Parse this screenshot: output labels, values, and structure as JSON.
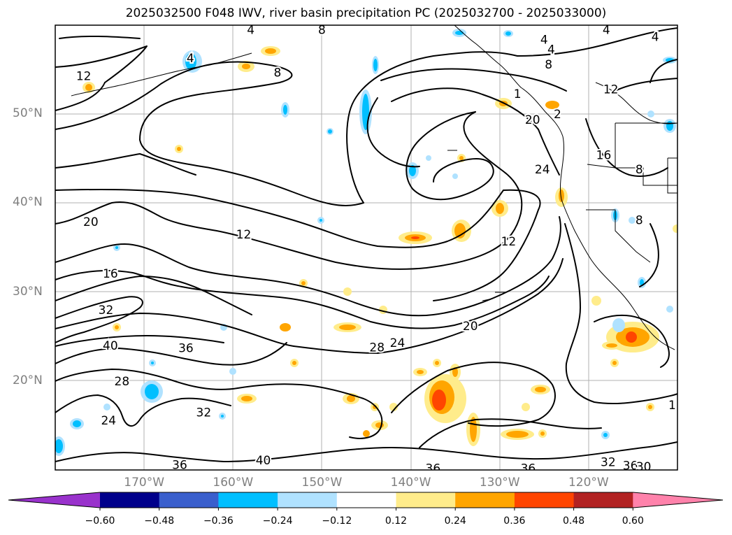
{
  "title": "2025032500 F048 IWV, river basin precipitation PC (2025032700 - 2025033000)",
  "map": {
    "lon_range": [
      -180,
      -110
    ],
    "lat_range": [
      10,
      60
    ],
    "lat_labels": [
      {
        "lat": 50,
        "text": "50°N"
      },
      {
        "lat": 40,
        "text": "40°N"
      },
      {
        "lat": 30,
        "text": "30°N"
      },
      {
        "lat": 20,
        "text": "20°N"
      }
    ],
    "lon_labels": [
      {
        "lon": -170,
        "text": "170°W"
      },
      {
        "lon": -160,
        "text": "160°W"
      },
      {
        "lon": -150,
        "text": "150°W"
      },
      {
        "lon": -140,
        "text": "140°W"
      },
      {
        "lon": -130,
        "text": "130°W"
      },
      {
        "lon": -120,
        "text": "120°W"
      }
    ],
    "contour_labels": [
      {
        "text": "12",
        "lon": -176.8,
        "lat": 54.3
      },
      {
        "text": "4",
        "lon": -164.8,
        "lat": 56.3
      },
      {
        "text": "8",
        "lon": -155.0,
        "lat": 54.7
      },
      {
        "text": "4",
        "lon": -158.0,
        "lat": 59.5
      },
      {
        "text": "8",
        "lon": -150.0,
        "lat": 59.5
      },
      {
        "text": "4",
        "lon": -125.0,
        "lat": 58.4
      },
      {
        "text": "4",
        "lon": -124.2,
        "lat": 57.3
      },
      {
        "text": "8",
        "lon": -124.5,
        "lat": 55.6
      },
      {
        "text": "4",
        "lon": -118.0,
        "lat": 59.5
      },
      {
        "text": "4",
        "lon": -112.5,
        "lat": 58.7
      },
      {
        "text": "12",
        "lon": -117.5,
        "lat": 52.8
      },
      {
        "text": "16",
        "lon": -118.3,
        "lat": 45.4
      },
      {
        "text": "8",
        "lon": -114.3,
        "lat": 43.8
      },
      {
        "text": "8",
        "lon": -114.3,
        "lat": 38.1
      },
      {
        "text": "20",
        "lon": -126.3,
        "lat": 49.4
      },
      {
        "text": "24",
        "lon": -125.2,
        "lat": 43.8
      },
      {
        "text": "2",
        "lon": -123.5,
        "lat": 50.0
      },
      {
        "text": "1",
        "lon": -128.0,
        "lat": 52.3
      },
      {
        "text": "12",
        "lon": -158.8,
        "lat": 36.5
      },
      {
        "text": "12",
        "lon": -129.0,
        "lat": 35.7
      },
      {
        "text": "20",
        "lon": -176.0,
        "lat": 37.9
      },
      {
        "text": "16",
        "lon": -173.8,
        "lat": 32.1
      },
      {
        "text": "32",
        "lon": -174.3,
        "lat": 28.0
      },
      {
        "text": "40",
        "lon": -173.8,
        "lat": 24.0
      },
      {
        "text": "36",
        "lon": -165.3,
        "lat": 23.7
      },
      {
        "text": "28",
        "lon": -172.5,
        "lat": 20.0
      },
      {
        "text": "24",
        "lon": -174.0,
        "lat": 15.6
      },
      {
        "text": "32",
        "lon": -163.3,
        "lat": 16.5
      },
      {
        "text": "28",
        "lon": -143.8,
        "lat": 23.8
      },
      {
        "text": "24",
        "lon": -141.5,
        "lat": 24.3
      },
      {
        "text": "20",
        "lon": -133.3,
        "lat": 26.2
      },
      {
        "text": "36",
        "lon": -166.0,
        "lat": 10.6
      },
      {
        "text": "40",
        "lon": -156.6,
        "lat": 11.1
      },
      {
        "text": "36",
        "lon": -137.5,
        "lat": 10.2
      },
      {
        "text": "36",
        "lon": -126.8,
        "lat": 10.2
      },
      {
        "text": "32",
        "lon": -117.8,
        "lat": 10.9
      },
      {
        "text": "36",
        "lon": -115.3,
        "lat": 10.5
      },
      {
        "text": "30",
        "lon": -113.8,
        "lat": 10.4
      },
      {
        "text": "1",
        "lon": -110.6,
        "lat": 17.3
      }
    ]
  },
  "colorbar": {
    "colors": [
      "#9932cc",
      "#00008b",
      "#3a5fcd",
      "#00bfff",
      "#b0e2ff",
      "#ffffff",
      "#ffec8b",
      "#ffa500",
      "#ff4500",
      "#b22222",
      "#ff82ab"
    ],
    "tick_labels": [
      "−0.60",
      "−0.48",
      "−0.36",
      "−0.24",
      "−0.12",
      "0.12",
      "0.24",
      "0.36",
      "0.48",
      "0.60"
    ]
  }
}
